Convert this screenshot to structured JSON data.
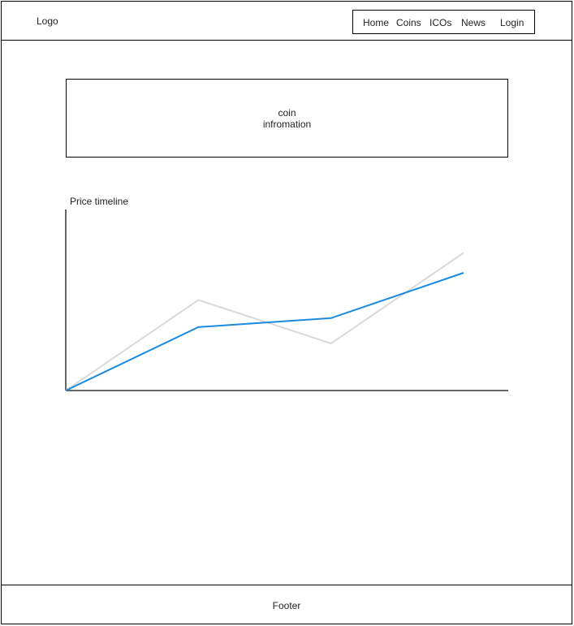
{
  "header": {
    "logo": "Logo",
    "nav": [
      {
        "label": "Home"
      },
      {
        "label": "Coins"
      },
      {
        "label": "ICOs"
      },
      {
        "label": "News"
      },
      {
        "label": "Login"
      }
    ]
  },
  "main": {
    "coin_info": "coin\ninfromation",
    "chart_title": "Price timeline"
  },
  "footer": {
    "label": "Footer"
  },
  "chart_data": {
    "type": "line",
    "title": "Price timeline",
    "xlabel": "",
    "ylabel": "",
    "x": [
      0,
      1,
      2,
      3
    ],
    "series": [
      {
        "color": "#1a8ae0",
        "values": [
          0,
          35,
          40,
          65
        ]
      },
      {
        "color": "#d9d9d9",
        "values": [
          0,
          50,
          26,
          76
        ]
      }
    ],
    "grid": false
  }
}
